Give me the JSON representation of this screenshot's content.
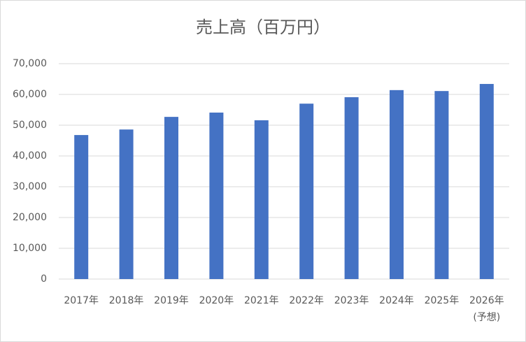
{
  "chart_data": {
    "type": "bar",
    "title": "売上高（百万円）",
    "categories": [
      "2017年",
      "2018年",
      "2019年",
      "2020年",
      "2021年",
      "2022年",
      "2023年",
      "2024年",
      "2025年",
      "2026年\n(予想)"
    ],
    "values": [
      46800,
      48600,
      52700,
      54100,
      51600,
      57000,
      59100,
      61400,
      61100,
      63400
    ],
    "color": "#4472c4",
    "ylim": [
      0,
      70000
    ],
    "yticks": [
      0,
      {
        "value": 10000,
        "label": "10,000"
      },
      {
        "value": 20000,
        "label": "20,000"
      },
      {
        "value": 30000,
        "label": "30,000"
      },
      {
        "value": 40000,
        "label": "40,000"
      },
      {
        "value": 50000,
        "label": "50,000"
      },
      {
        "value": 60000,
        "label": "60,000"
      },
      {
        "value": 70000,
        "label": "70,000"
      }
    ],
    "grid": true
  }
}
